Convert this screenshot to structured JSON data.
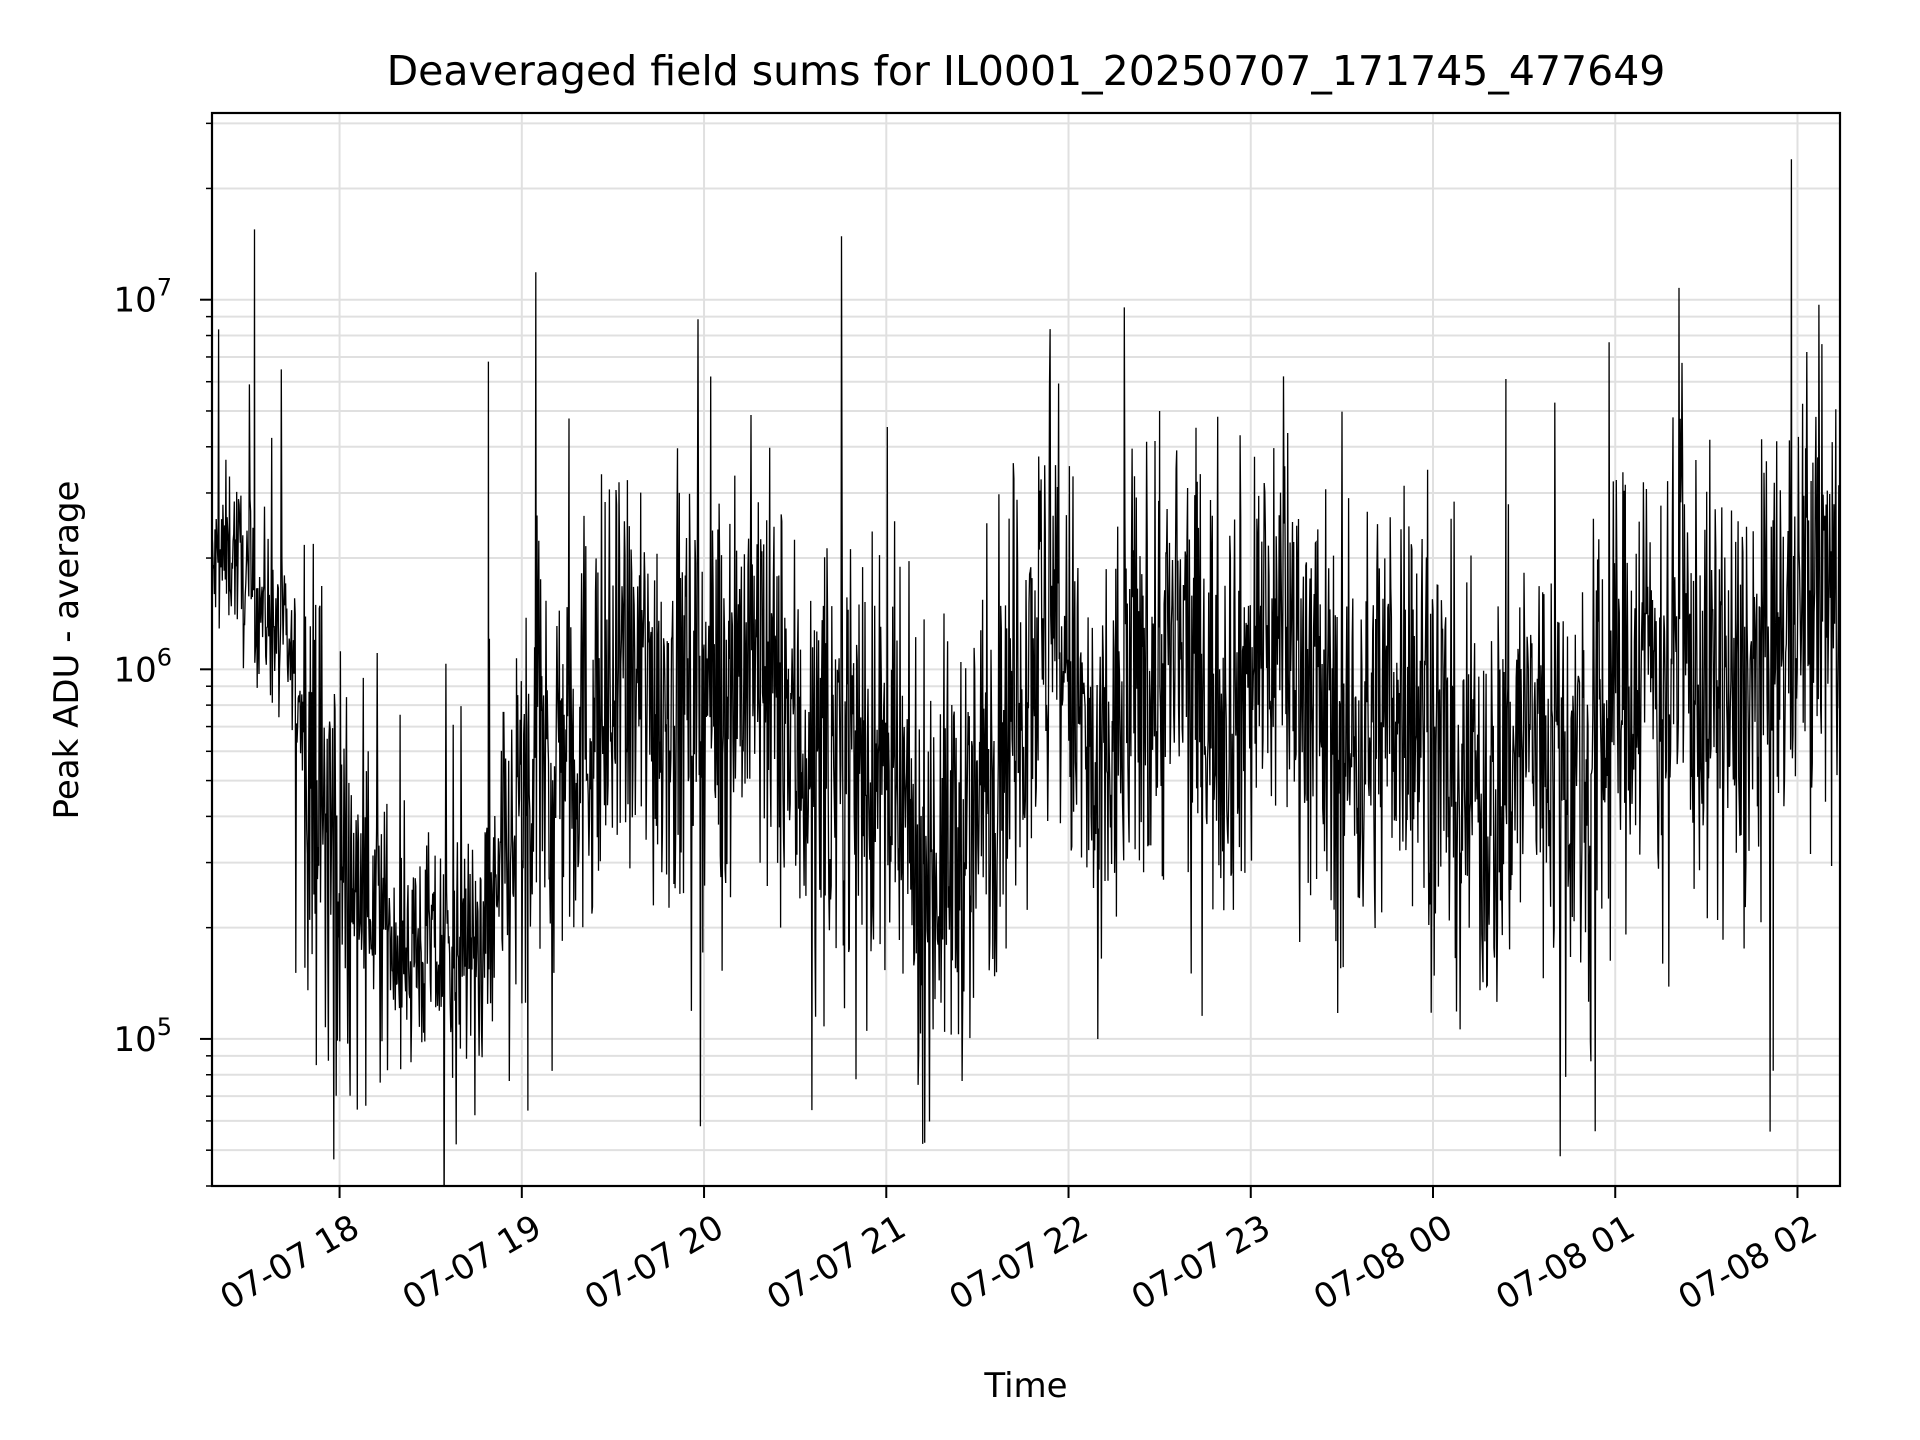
{
  "chart_data": {
    "type": "line",
    "title": "Deaveraged field sums for IL0001_20250707_171745_477649",
    "xlabel": "Time",
    "ylabel": "Peak ADU - average",
    "yscale": "log",
    "ylim": [
      40000,
      32000000
    ],
    "xlim": [
      "2025-07-07 17:18",
      "2025-07-08 02:14"
    ],
    "grid": true,
    "x_ticks": [
      "07-07 18",
      "07-07 19",
      "07-07 20",
      "07-07 21",
      "07-07 22",
      "07-07 23",
      "07-08 00",
      "07-08 01",
      "07-08 02"
    ],
    "x_tick_times": [
      "2025-07-07 18:00",
      "2025-07-07 19:00",
      "2025-07-07 20:00",
      "2025-07-07 21:00",
      "2025-07-07 22:00",
      "2025-07-07 23:00",
      "2025-07-08 00:00",
      "2025-07-08 01:00",
      "2025-07-08 02:00"
    ],
    "y_ticks": [
      {
        "value": 100000,
        "base": "10",
        "exp": "5"
      },
      {
        "value": 1000000,
        "base": "10",
        "exp": "6"
      },
      {
        "value": 10000000,
        "base": "10",
        "exp": "7"
      }
    ],
    "line_color": "#000000",
    "series": [
      {
        "x": [
          "2025-07-07 17:18",
          "2025-07-07 17:25",
          "2025-07-07 17:30",
          "2025-07-07 17:35",
          "2025-07-07 17:45",
          "2025-07-07 17:52",
          "2025-07-07 18:00",
          "2025-07-07 18:10",
          "2025-07-07 18:20",
          "2025-07-07 18:30",
          "2025-07-07 18:40",
          "2025-07-07 18:50",
          "2025-07-07 19:00",
          "2025-07-07 19:10",
          "2025-07-07 19:20",
          "2025-07-07 19:30",
          "2025-07-07 19:40",
          "2025-07-07 19:50",
          "2025-07-07 20:00",
          "2025-07-07 20:10",
          "2025-07-07 20:20",
          "2025-07-07 20:30",
          "2025-07-07 20:40",
          "2025-07-07 20:50",
          "2025-07-07 21:00",
          "2025-07-07 21:10",
          "2025-07-07 21:20",
          "2025-07-07 21:30",
          "2025-07-07 21:40",
          "2025-07-07 21:50",
          "2025-07-07 22:00",
          "2025-07-07 22:10",
          "2025-07-07 22:20",
          "2025-07-07 22:30",
          "2025-07-07 22:40",
          "2025-07-07 22:50",
          "2025-07-07 23:00",
          "2025-07-07 23:10",
          "2025-07-07 23:20",
          "2025-07-07 23:30",
          "2025-07-07 23:40",
          "2025-07-07 23:50",
          "2025-07-08 00:00",
          "2025-07-08 00:10",
          "2025-07-08 00:20",
          "2025-07-08 00:30",
          "2025-07-08 00:40",
          "2025-07-08 00:50",
          "2025-07-08 01:00",
          "2025-07-08 01:10",
          "2025-07-08 01:20",
          "2025-07-08 01:30",
          "2025-07-08 01:40",
          "2025-07-08 01:50",
          "2025-07-08 02:00",
          "2025-07-08 02:10",
          "2025-07-08 02:14"
        ],
        "y": [
          1800000,
          2200000,
          1600000,
          1500000,
          1000000,
          500000,
          300000,
          250000,
          180000,
          170000,
          170000,
          200000,
          400000,
          600000,
          700000,
          800000,
          900000,
          850000,
          900000,
          1100000,
          1000000,
          600000,
          600000,
          700000,
          450000,
          300000,
          300000,
          400000,
          800000,
          1300000,
          1000000,
          400000,
          900000,
          1000000,
          1100000,
          800000,
          1000000,
          1400000,
          900000,
          600000,
          700000,
          1000000,
          700000,
          500000,
          400000,
          700000,
          600000,
          500000,
          800000,
          1200000,
          1100000,
          900000,
          800000,
          1000000,
          1600000,
          1700000,
          1500000
        ],
        "notable_peaks": [
          {
            "x": "2025-07-07 17:32",
            "y": 15500000
          },
          {
            "x": "2025-07-07 18:49",
            "y": 6800000
          },
          {
            "x": "2025-07-07 22:30",
            "y": 5000000
          },
          {
            "x": "2025-07-08 00:24",
            "y": 6100000
          },
          {
            "x": "2025-07-08 01:58",
            "y": 24000000
          }
        ],
        "notable_minima": [
          {
            "x": "2025-07-07 19:02",
            "y": 64000
          },
          {
            "x": "2025-07-07 21:12",
            "y": 52000
          },
          {
            "x": "2025-07-08 00:52",
            "y": 87000
          },
          {
            "x": "2025-07-08 01:52",
            "y": 82000
          }
        ]
      }
    ]
  }
}
